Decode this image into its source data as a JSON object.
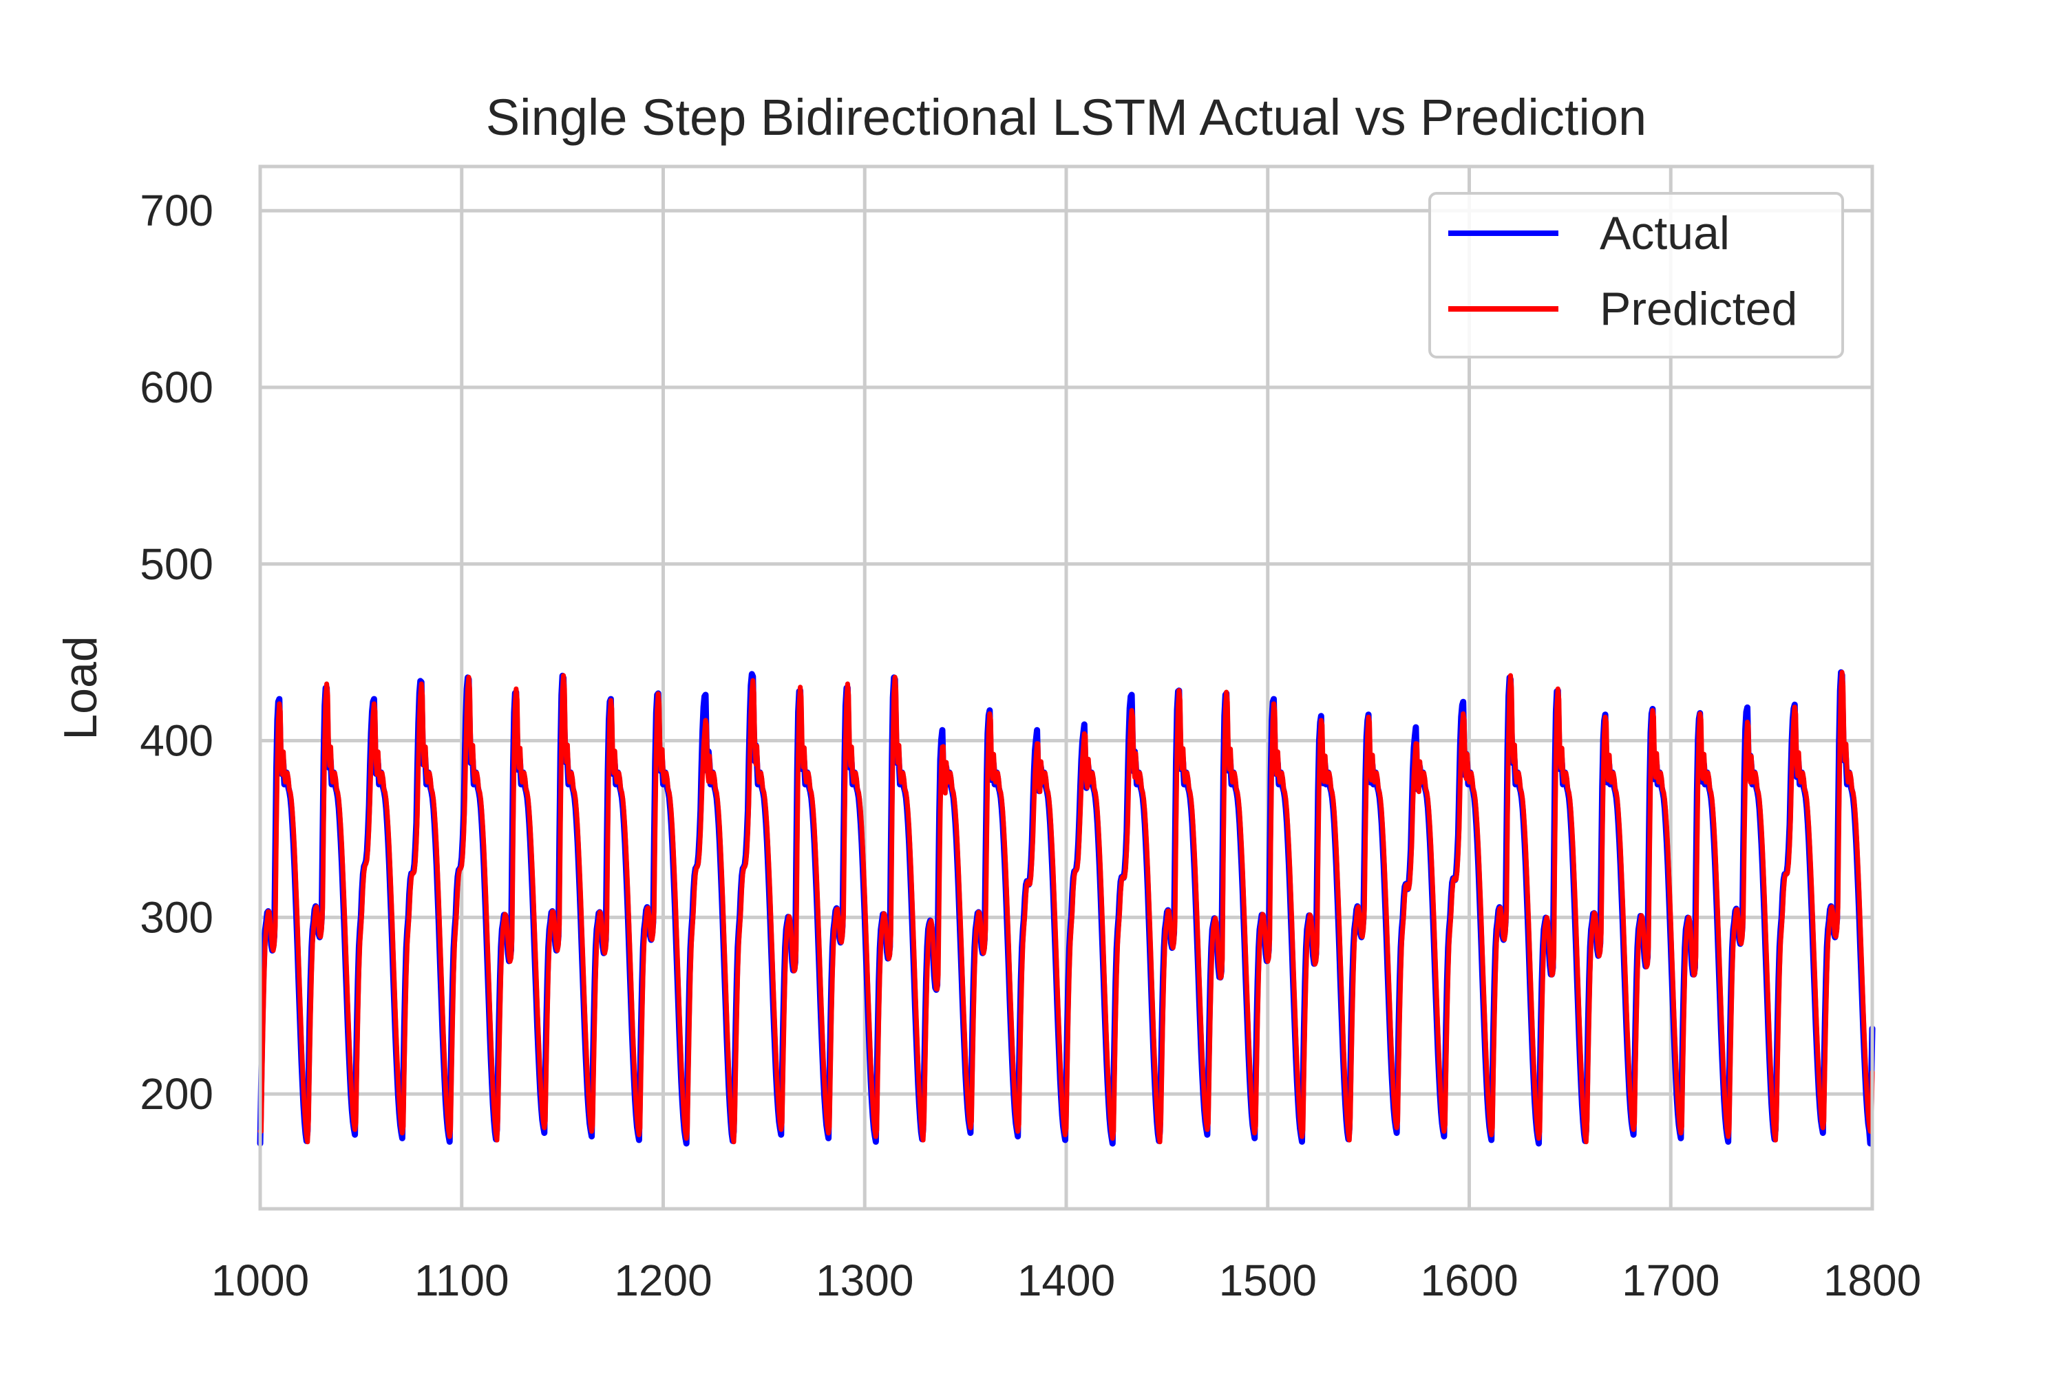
{
  "chart_data": {
    "type": "line",
    "title": "Single Step Bidirectional LSTM Actual vs Prediction",
    "xlabel": "",
    "ylabel": "Load",
    "xlim": [
      1000,
      1800
    ],
    "ylim": [
      135,
      725
    ],
    "xticks": [
      1000,
      1100,
      1200,
      1300,
      1400,
      1500,
      1600,
      1700,
      1800
    ],
    "yticks": [
      200,
      300,
      400,
      500,
      600,
      700
    ],
    "grid": true,
    "legend_position": "top-right",
    "colors": {
      "Actual": "#0000ff",
      "Predicted": "#ff0000",
      "grid": "#cccccc",
      "text": "#262626"
    },
    "series": [
      {
        "name": "Actual",
        "color": "#0000ff"
      },
      {
        "name": "Predicted",
        "color": "#ff0000"
      }
    ],
    "cycle_period_steps": 23.5,
    "cycle_start_x": 1000,
    "trough_low": 175,
    "shoulder_low": 280,
    "peak_high": 425,
    "peaks_actual": [
      420,
      428,
      420,
      432,
      434,
      425,
      435,
      420,
      424,
      423,
      436,
      426,
      428,
      434,
      398,
      412,
      398,
      402,
      423,
      426,
      424,
      420,
      408,
      409,
      400,
      418,
      434,
      426,
      409,
      413,
      410,
      414,
      416,
      437
    ],
    "peaks_predicted": [
      416,
      428,
      416,
      428,
      432,
      425,
      433,
      418,
      422,
      406,
      430,
      426,
      428,
      432,
      390,
      410,
      392,
      398,
      412,
      424,
      423,
      416,
      406,
      408,
      392,
      410,
      433,
      425,
      408,
      412,
      410,
      405,
      414,
      435
    ],
    "mid_values": [
      290,
      300,
      365,
      355,
      360,
      282,
      290,
      288,
      298,
      362,
      362,
      275,
      296,
      284,
      262,
      288,
      344,
      358,
      350,
      292,
      270,
      282,
      280,
      300,
      340,
      348,
      298,
      272,
      286,
      278,
      272,
      295,
      354,
      300
    ]
  }
}
